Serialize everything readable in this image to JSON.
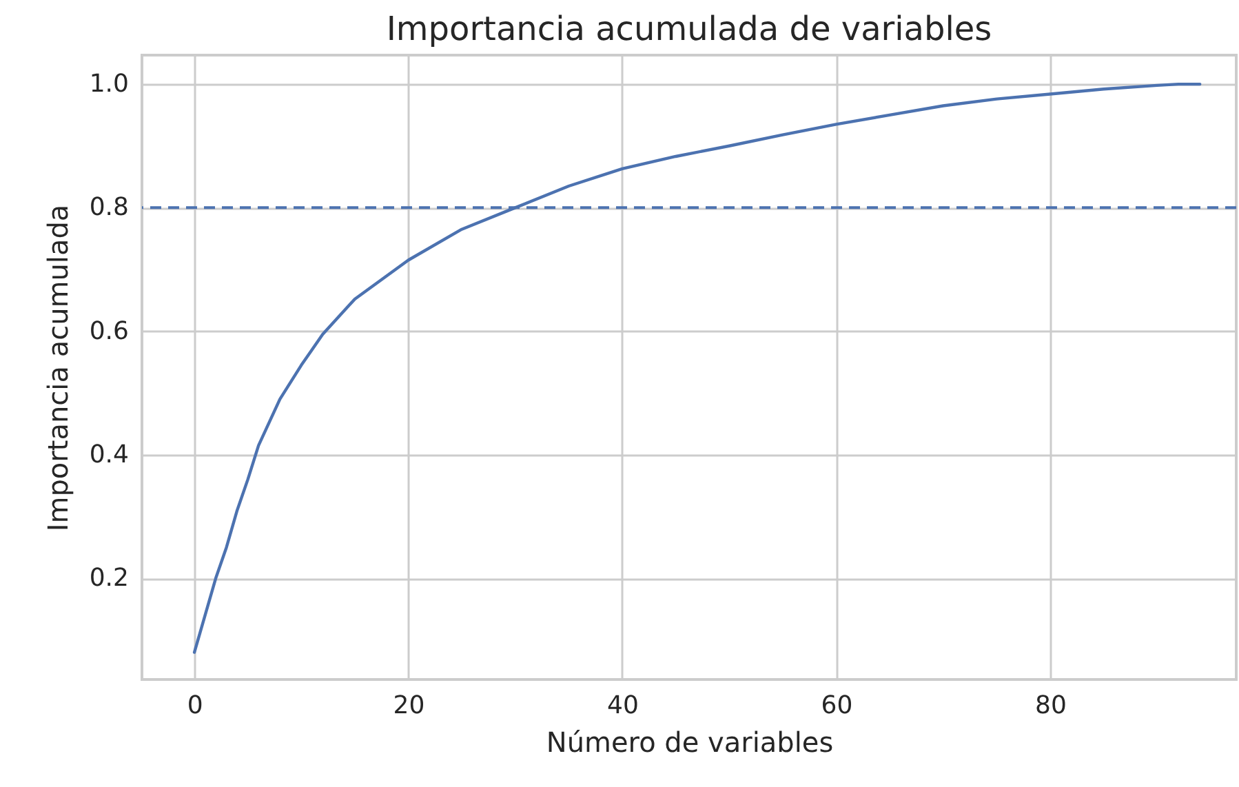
{
  "chart_data": {
    "type": "line",
    "title": "Importancia acumulada de variables",
    "xlabel": "Número de variables",
    "ylabel": "Importancia acumulada",
    "x": [
      0,
      1,
      2,
      3,
      4,
      5,
      6,
      8,
      10,
      12,
      15,
      20,
      25,
      30,
      35,
      40,
      45,
      50,
      55,
      60,
      65,
      70,
      75,
      80,
      85,
      90,
      92,
      94
    ],
    "series": [
      {
        "color": "#4c72b0",
        "values": [
          0.08,
          0.14,
          0.2,
          0.25,
          0.31,
          0.36,
          0.415,
          0.49,
          0.545,
          0.595,
          0.652,
          0.715,
          0.765,
          0.8,
          0.835,
          0.863,
          0.883,
          0.9,
          0.918,
          0.935,
          0.95,
          0.965,
          0.976,
          0.984,
          0.992,
          0.998,
          1.0,
          1.0
        ]
      }
    ],
    "xlim": [
      -4.9,
      97.4
    ],
    "ylim": [
      0.036,
      1.047
    ],
    "xticks": [
      0,
      20,
      40,
      60,
      80
    ],
    "yticks": [
      0.2,
      0.4,
      0.6,
      0.8,
      {
        "value": 1,
        "label": "1.0"
      }
    ],
    "ref_lines": [
      {
        "axis": "y",
        "value": 0.8,
        "color": "#4c72b0",
        "line_style": "dashed"
      }
    ],
    "grid": true,
    "marker": "none",
    "line_style": "solid"
  }
}
